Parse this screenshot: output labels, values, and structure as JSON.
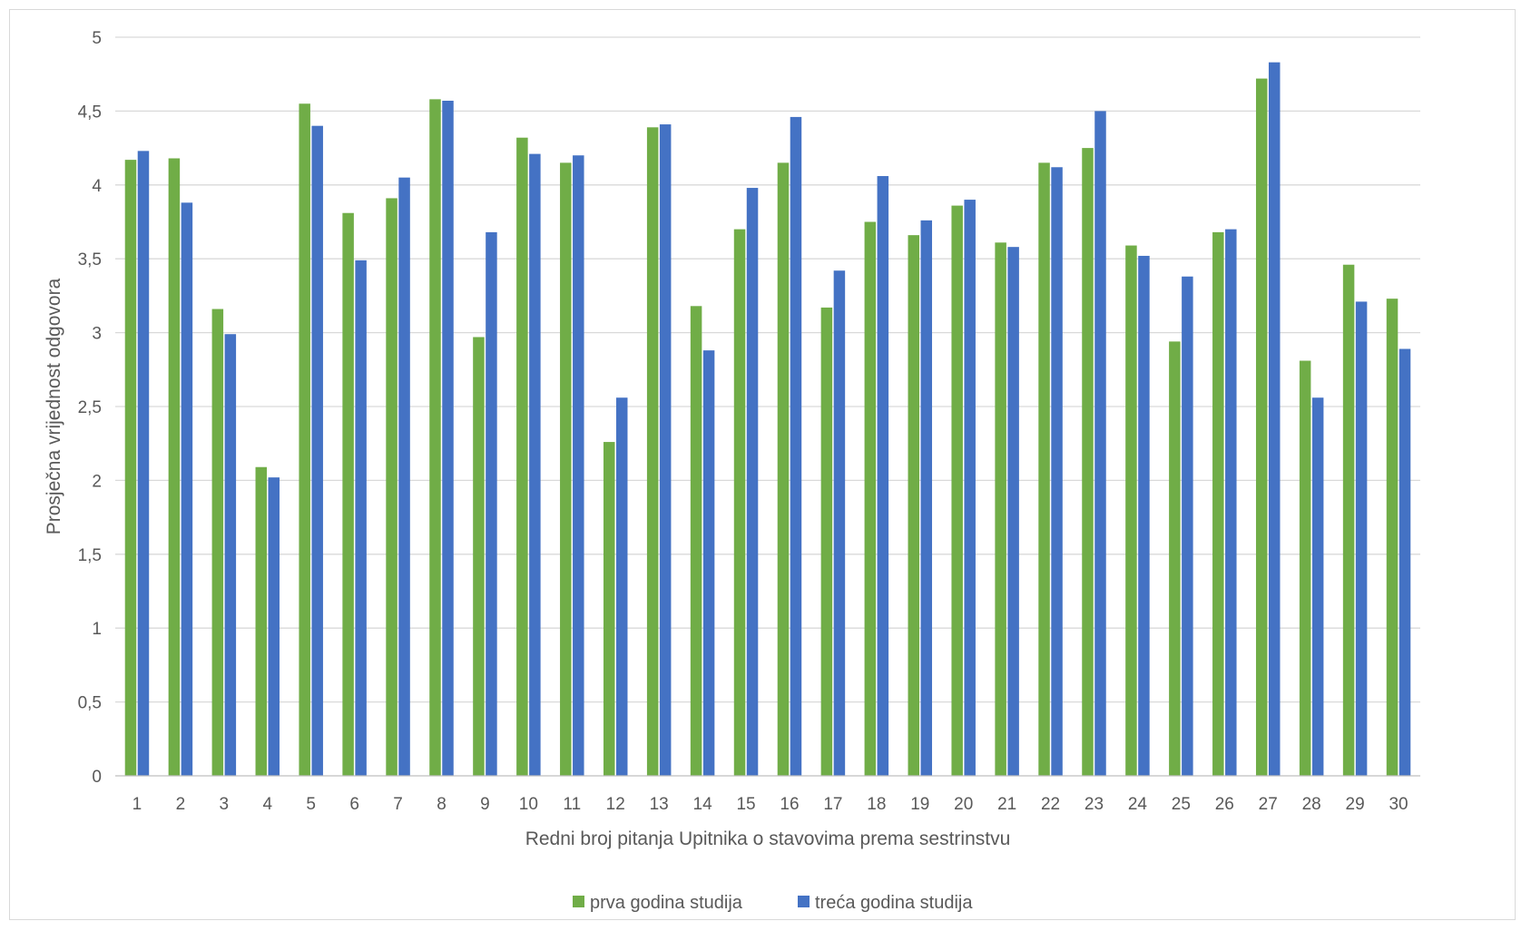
{
  "chart_data": {
    "type": "bar",
    "title": "",
    "xlabel": "Redni broj pitanja Upitnika o stavovima prema sestrinstvu",
    "ylabel": "Prosječna vrijednost odgovora",
    "ylim": [
      0,
      5
    ],
    "y_ticks": [
      "0",
      "0,5",
      "1",
      "1,5",
      "2",
      "2,5",
      "3",
      "3,5",
      "4",
      "4,5",
      "5"
    ],
    "grid": true,
    "legend_position": "bottom",
    "categories": [
      "1",
      "2",
      "3",
      "4",
      "5",
      "6",
      "7",
      "8",
      "9",
      "10",
      "11",
      "12",
      "13",
      "14",
      "15",
      "16",
      "17",
      "18",
      "19",
      "20",
      "21",
      "22",
      "23",
      "24",
      "25",
      "26",
      "27",
      "28",
      "29",
      "30"
    ],
    "series": [
      {
        "name": "prva godina studija",
        "color": "#70ad47",
        "values": [
          4.17,
          4.18,
          3.16,
          2.09,
          4.55,
          3.81,
          3.91,
          4.58,
          2.97,
          4.32,
          4.15,
          2.26,
          4.39,
          3.18,
          3.7,
          4.15,
          3.17,
          3.75,
          3.66,
          3.86,
          3.61,
          4.15,
          4.25,
          3.59,
          2.94,
          3.68,
          4.72,
          2.81,
          3.46,
          3.23
        ]
      },
      {
        "name": "treća godina studija",
        "color": "#4472c4",
        "values": [
          4.23,
          3.88,
          2.99,
          2.02,
          4.4,
          3.49,
          4.05,
          4.57,
          3.68,
          4.21,
          4.2,
          2.56,
          4.41,
          2.88,
          3.98,
          4.46,
          3.42,
          4.06,
          3.76,
          3.9,
          3.58,
          4.12,
          4.5,
          3.52,
          3.38,
          3.7,
          4.83,
          2.56,
          3.21,
          2.89
        ]
      }
    ]
  }
}
